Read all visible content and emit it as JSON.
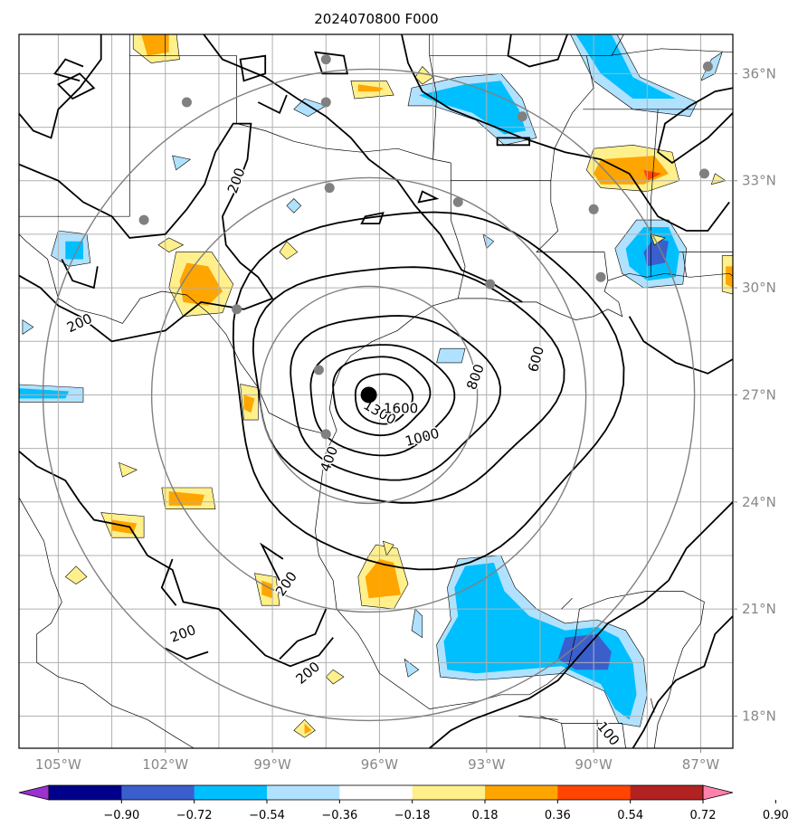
{
  "title": "2024070800 F000",
  "map": {
    "lon_labels": [
      "105°W",
      "102°W",
      "99°W",
      "96°W",
      "93°W",
      "90°W",
      "87°W"
    ],
    "lat_labels": [
      "18°N",
      "21°N",
      "24°N",
      "27°N",
      "30°N",
      "33°N",
      "36°N"
    ],
    "storm_center_lon": -96.3,
    "storm_center_lat": 27.0,
    "contour_labels": [
      {
        "text": "200",
        "lon": -100.0,
        "lat": 33.0,
        "rot": -70
      },
      {
        "text": "200",
        "lon": -104.4,
        "lat": 29.0,
        "rot": -25
      },
      {
        "text": "200",
        "lon": -98.6,
        "lat": 21.7,
        "rot": -55
      },
      {
        "text": "200",
        "lon": -101.5,
        "lat": 20.3,
        "rot": -20
      },
      {
        "text": "200",
        "lon": -98.0,
        "lat": 19.2,
        "rot": -40
      },
      {
        "text": "400",
        "lon": -97.4,
        "lat": 25.2,
        "rot": -70
      },
      {
        "text": "600",
        "lon": -91.6,
        "lat": 28.0,
        "rot": -75
      },
      {
        "text": "800",
        "lon": -93.3,
        "lat": 27.5,
        "rot": -70
      },
      {
        "text": "1000",
        "lon": -94.8,
        "lat": 25.8,
        "rot": -15
      },
      {
        "text": "1300",
        "lon": -96.0,
        "lat": 26.5,
        "rot": 30
      },
      {
        "text": "1600",
        "lon": -95.4,
        "lat": 26.6,
        "rot": 0
      },
      {
        "text": "100",
        "lon": -89.6,
        "lat": 17.5,
        "rot": 50
      }
    ],
    "stations": [
      [
        -97.5,
        36.4
      ],
      [
        -101.4,
        35.2
      ],
      [
        -97.5,
        35.2
      ],
      [
        -92.0,
        34.8
      ],
      [
        -86.8,
        36.2
      ],
      [
        -97.4,
        32.8
      ],
      [
        -93.8,
        32.4
      ],
      [
        -90.0,
        32.2
      ],
      [
        -86.9,
        33.2
      ],
      [
        -102.6,
        31.9
      ],
      [
        -89.8,
        30.3
      ],
      [
        -92.9,
        30.1
      ],
      [
        -100.0,
        29.4
      ],
      [
        -97.7,
        27.7
      ],
      [
        -97.5,
        25.9
      ]
    ]
  },
  "colorbar": {
    "tick_labels": [
      "−0.90",
      "−0.72",
      "−0.54",
      "−0.36",
      "−0.18",
      "0.18",
      "0.36",
      "0.54",
      "0.72",
      "0.90"
    ],
    "colors": [
      "#9a32cd",
      "#00008b",
      "#3a5fcd",
      "#00bfff",
      "#b0e2ff",
      "#ffffff",
      "#fff08c",
      "#ffa500",
      "#ff4500",
      "#b22222",
      "#ff82ab"
    ]
  },
  "fill_colors": {
    "lightblue": "#b0e2ff",
    "blue": "#00bfff",
    "darkblue": "#3a5fcd",
    "lightyellow": "#fff08c",
    "orange": "#ffa500",
    "red": "#ff4500"
  }
}
